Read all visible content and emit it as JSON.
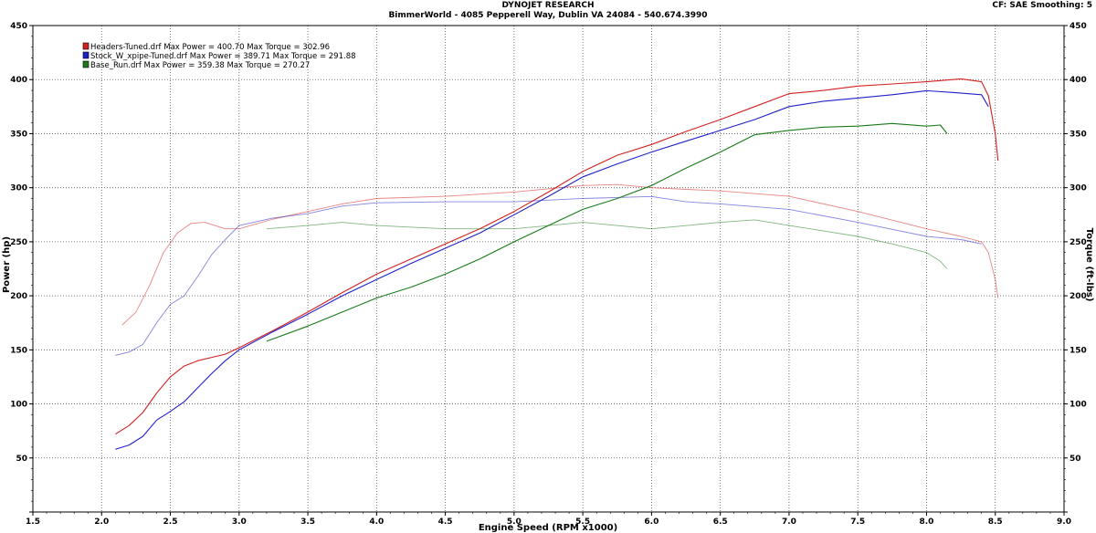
{
  "header": {
    "title": "DYNOJET RESEARCH",
    "subtitle": "BimmerWorld - 4085 Pepperell Way, Dublin VA 24084 - 540.674.3990",
    "correction": "CF: SAE  Smoothing: 5"
  },
  "chart_data": {
    "type": "line",
    "xlabel": "Engine Speed (RPM x1000)",
    "ylabel": "Power (hp)",
    "y2label": "Torque (ft-lbs)",
    "xlim": [
      1.5,
      9.0
    ],
    "ylim": [
      0,
      450
    ],
    "y2lim": [
      0,
      450
    ],
    "xticks": [
      1.5,
      2.0,
      2.5,
      3.0,
      3.5,
      4.0,
      4.5,
      5.0,
      5.5,
      6.0,
      6.5,
      7.0,
      7.5,
      8.0,
      8.5,
      9.0
    ],
    "yticks": [
      0,
      50,
      100,
      150,
      200,
      250,
      300,
      350,
      400,
      450
    ],
    "grid": true,
    "legend_position": "top-left",
    "legend": [
      {
        "label": "Headers-Tuned.drf Max Power = 400.70     Max Torque = 302.96",
        "color": "#d42020"
      },
      {
        "label": "Stock_W_xpipe-Tuned.drf Max Power = 389.71     Max Torque = 291.88",
        "color": "#2020c8"
      },
      {
        "label": "Base_Run.drf Max Power = 359.38     Max Torque = 270.27",
        "color": "#1a7a1a"
      }
    ],
    "series": [
      {
        "name": "Headers-Tuned.drf",
        "color": "#d42020",
        "power": {
          "x": [
            2.1,
            2.2,
            2.3,
            2.4,
            2.5,
            2.6,
            2.7,
            2.8,
            2.9,
            3.0,
            3.25,
            3.5,
            3.75,
            4.0,
            4.25,
            4.5,
            4.75,
            5.0,
            5.25,
            5.5,
            5.75,
            6.0,
            6.25,
            6.5,
            6.75,
            7.0,
            7.25,
            7.5,
            7.75,
            8.0,
            8.25,
            8.4,
            8.45,
            8.5,
            8.52
          ],
          "y": [
            72,
            80,
            92,
            110,
            125,
            135,
            140,
            143,
            146,
            152,
            168,
            185,
            203,
            220,
            234,
            248,
            262,
            278,
            296,
            315,
            330,
            340,
            352,
            363,
            375,
            387,
            390,
            394,
            396,
            398,
            400.7,
            398,
            385,
            350,
            325
          ]
        },
        "torque": {
          "x": [
            2.15,
            2.25,
            2.35,
            2.45,
            2.55,
            2.65,
            2.75,
            2.9,
            3.0,
            3.25,
            3.5,
            3.75,
            4.0,
            4.5,
            5.0,
            5.5,
            5.75,
            6.0,
            6.5,
            7.0,
            7.5,
            8.0,
            8.25,
            8.4,
            8.45,
            8.5,
            8.52
          ],
          "y": [
            173,
            185,
            210,
            240,
            258,
            267,
            268,
            262,
            262,
            271,
            278,
            285,
            290,
            292,
            296,
            302,
            302.96,
            300,
            297,
            292,
            278,
            262,
            255,
            250,
            240,
            215,
            198
          ]
        }
      },
      {
        "name": "Stock_W_xpipe-Tuned.drf",
        "color": "#2020c8",
        "power": {
          "x": [
            2.1,
            2.2,
            2.3,
            2.4,
            2.5,
            2.6,
            2.7,
            2.8,
            2.9,
            3.0,
            3.25,
            3.5,
            3.75,
            4.0,
            4.25,
            4.5,
            4.75,
            5.0,
            5.25,
            5.5,
            5.75,
            6.0,
            6.25,
            6.5,
            6.75,
            7.0,
            7.25,
            7.5,
            7.75,
            8.0,
            8.2,
            8.4,
            8.45
          ],
          "y": [
            58,
            62,
            70,
            85,
            93,
            102,
            115,
            128,
            140,
            150,
            167,
            183,
            200,
            215,
            230,
            244,
            258,
            275,
            292,
            310,
            322,
            333,
            343,
            353,
            363,
            375,
            380,
            383,
            386,
            389.71,
            388,
            386,
            375
          ]
        },
        "torque": {
          "x": [
            2.1,
            2.2,
            2.3,
            2.4,
            2.5,
            2.6,
            2.7,
            2.8,
            2.9,
            3.0,
            3.25,
            3.5,
            3.75,
            4.0,
            4.5,
            5.0,
            5.5,
            6.0,
            6.25,
            6.5,
            7.0,
            7.5,
            8.0,
            8.25,
            8.4
          ],
          "y": [
            145,
            148,
            155,
            175,
            192,
            200,
            218,
            238,
            252,
            265,
            272,
            276,
            283,
            286,
            287,
            287,
            290,
            291.88,
            287,
            285,
            280,
            268,
            255,
            252,
            248
          ]
        }
      },
      {
        "name": "Base_Run.drf",
        "color": "#1a7a1a",
        "power": {
          "x": [
            3.2,
            3.5,
            3.75,
            4.0,
            4.25,
            4.5,
            4.75,
            5.0,
            5.25,
            5.5,
            5.75,
            6.0,
            6.25,
            6.5,
            6.75,
            7.0,
            7.25,
            7.5,
            7.75,
            8.0,
            8.1,
            8.15
          ],
          "y": [
            158,
            172,
            185,
            198,
            208,
            220,
            234,
            250,
            265,
            280,
            290,
            302,
            318,
            333,
            349,
            353,
            356,
            357,
            359.38,
            357,
            358,
            350
          ]
        },
        "torque": {
          "x": [
            3.2,
            3.5,
            3.75,
            4.0,
            4.5,
            5.0,
            5.5,
            6.0,
            6.5,
            6.75,
            7.0,
            7.5,
            7.75,
            8.0,
            8.1,
            8.15
          ],
          "y": [
            262,
            265,
            268,
            265,
            262,
            262,
            268,
            262,
            268,
            270.27,
            265,
            255,
            248,
            240,
            232,
            225
          ]
        }
      }
    ]
  }
}
